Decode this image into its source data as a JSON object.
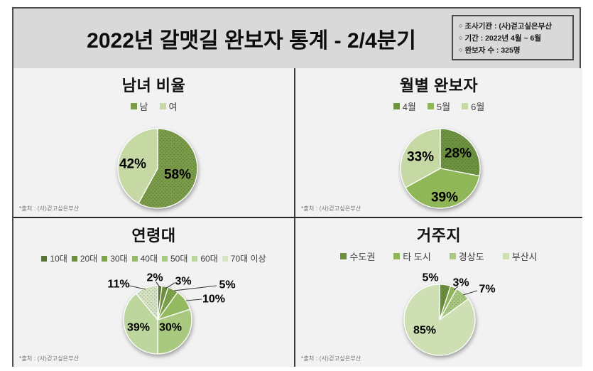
{
  "header": {
    "title": "2022년 갈맷길 완보자 통계 - 2/4분기",
    "bullet": "○",
    "info_items": [
      "조사기관 : (사)걷고싶은부산",
      "기간 : 2022년 4월 ~ 6월",
      "완보자 수 : 325명"
    ]
  },
  "source_note": "*출처 : (사)걷고싶은부산",
  "colors": {
    "page_bg": "#ffffff",
    "panel_bg": "#f2f2f2",
    "header_bg": "#d9d9d9",
    "border": "#3c3c3c",
    "label_text": "#000000"
  },
  "chart_data": [
    {
      "type": "pie",
      "title": "남녀 비율",
      "categories": [
        "남",
        "여"
      ],
      "values": [
        58,
        42
      ],
      "data_labels": [
        "58%",
        "42%"
      ],
      "colors": [
        "#7b9d49",
        "#c6d9a5"
      ],
      "dotted": [
        true,
        false
      ],
      "legend_position": "top",
      "start_angle": 0,
      "direction": "clockwise"
    },
    {
      "type": "pie",
      "title": "월별 완보자",
      "categories": [
        "4월",
        "5월",
        "6월"
      ],
      "values": [
        28,
        39,
        33
      ],
      "data_labels": [
        "28%",
        "39%",
        "33%"
      ],
      "colors": [
        "#6f9441",
        "#8fb757",
        "#c6d9a5"
      ],
      "dotted": [
        true,
        false,
        false
      ],
      "legend_position": "top",
      "start_angle": 0,
      "direction": "clockwise"
    },
    {
      "type": "pie",
      "title": "연령대",
      "categories": [
        "10대",
        "20대",
        "30대",
        "40대",
        "50대",
        "60대",
        "70대 이상"
      ],
      "values": [
        2,
        3,
        5,
        10,
        30,
        39,
        11
      ],
      "data_labels": [
        "2%",
        "3%",
        "5%",
        "10%",
        "30%",
        "39%",
        "11%"
      ],
      "colors": [
        "#5a7435",
        "#6d8f3f",
        "#7da44b",
        "#93ba61",
        "#a9c981",
        "#bdd69d",
        "#d7e4c3"
      ],
      "dotted": [
        true,
        false,
        true,
        false,
        false,
        false,
        true
      ],
      "legend_position": "top",
      "start_angle": 0,
      "direction": "clockwise"
    },
    {
      "type": "pie",
      "title": "거주지",
      "categories": [
        "수도권",
        "타 도시",
        "경상도",
        "부산시"
      ],
      "values": [
        5,
        3,
        7,
        85
      ],
      "data_labels": [
        "5%",
        "3%",
        "7%",
        "85%"
      ],
      "colors": [
        "#6d8f3f",
        "#8eb558",
        "#a9c981",
        "#cddfb3"
      ],
      "dotted": [
        true,
        false,
        true,
        false
      ],
      "legend_position": "top",
      "start_angle": 0,
      "direction": "clockwise"
    }
  ]
}
